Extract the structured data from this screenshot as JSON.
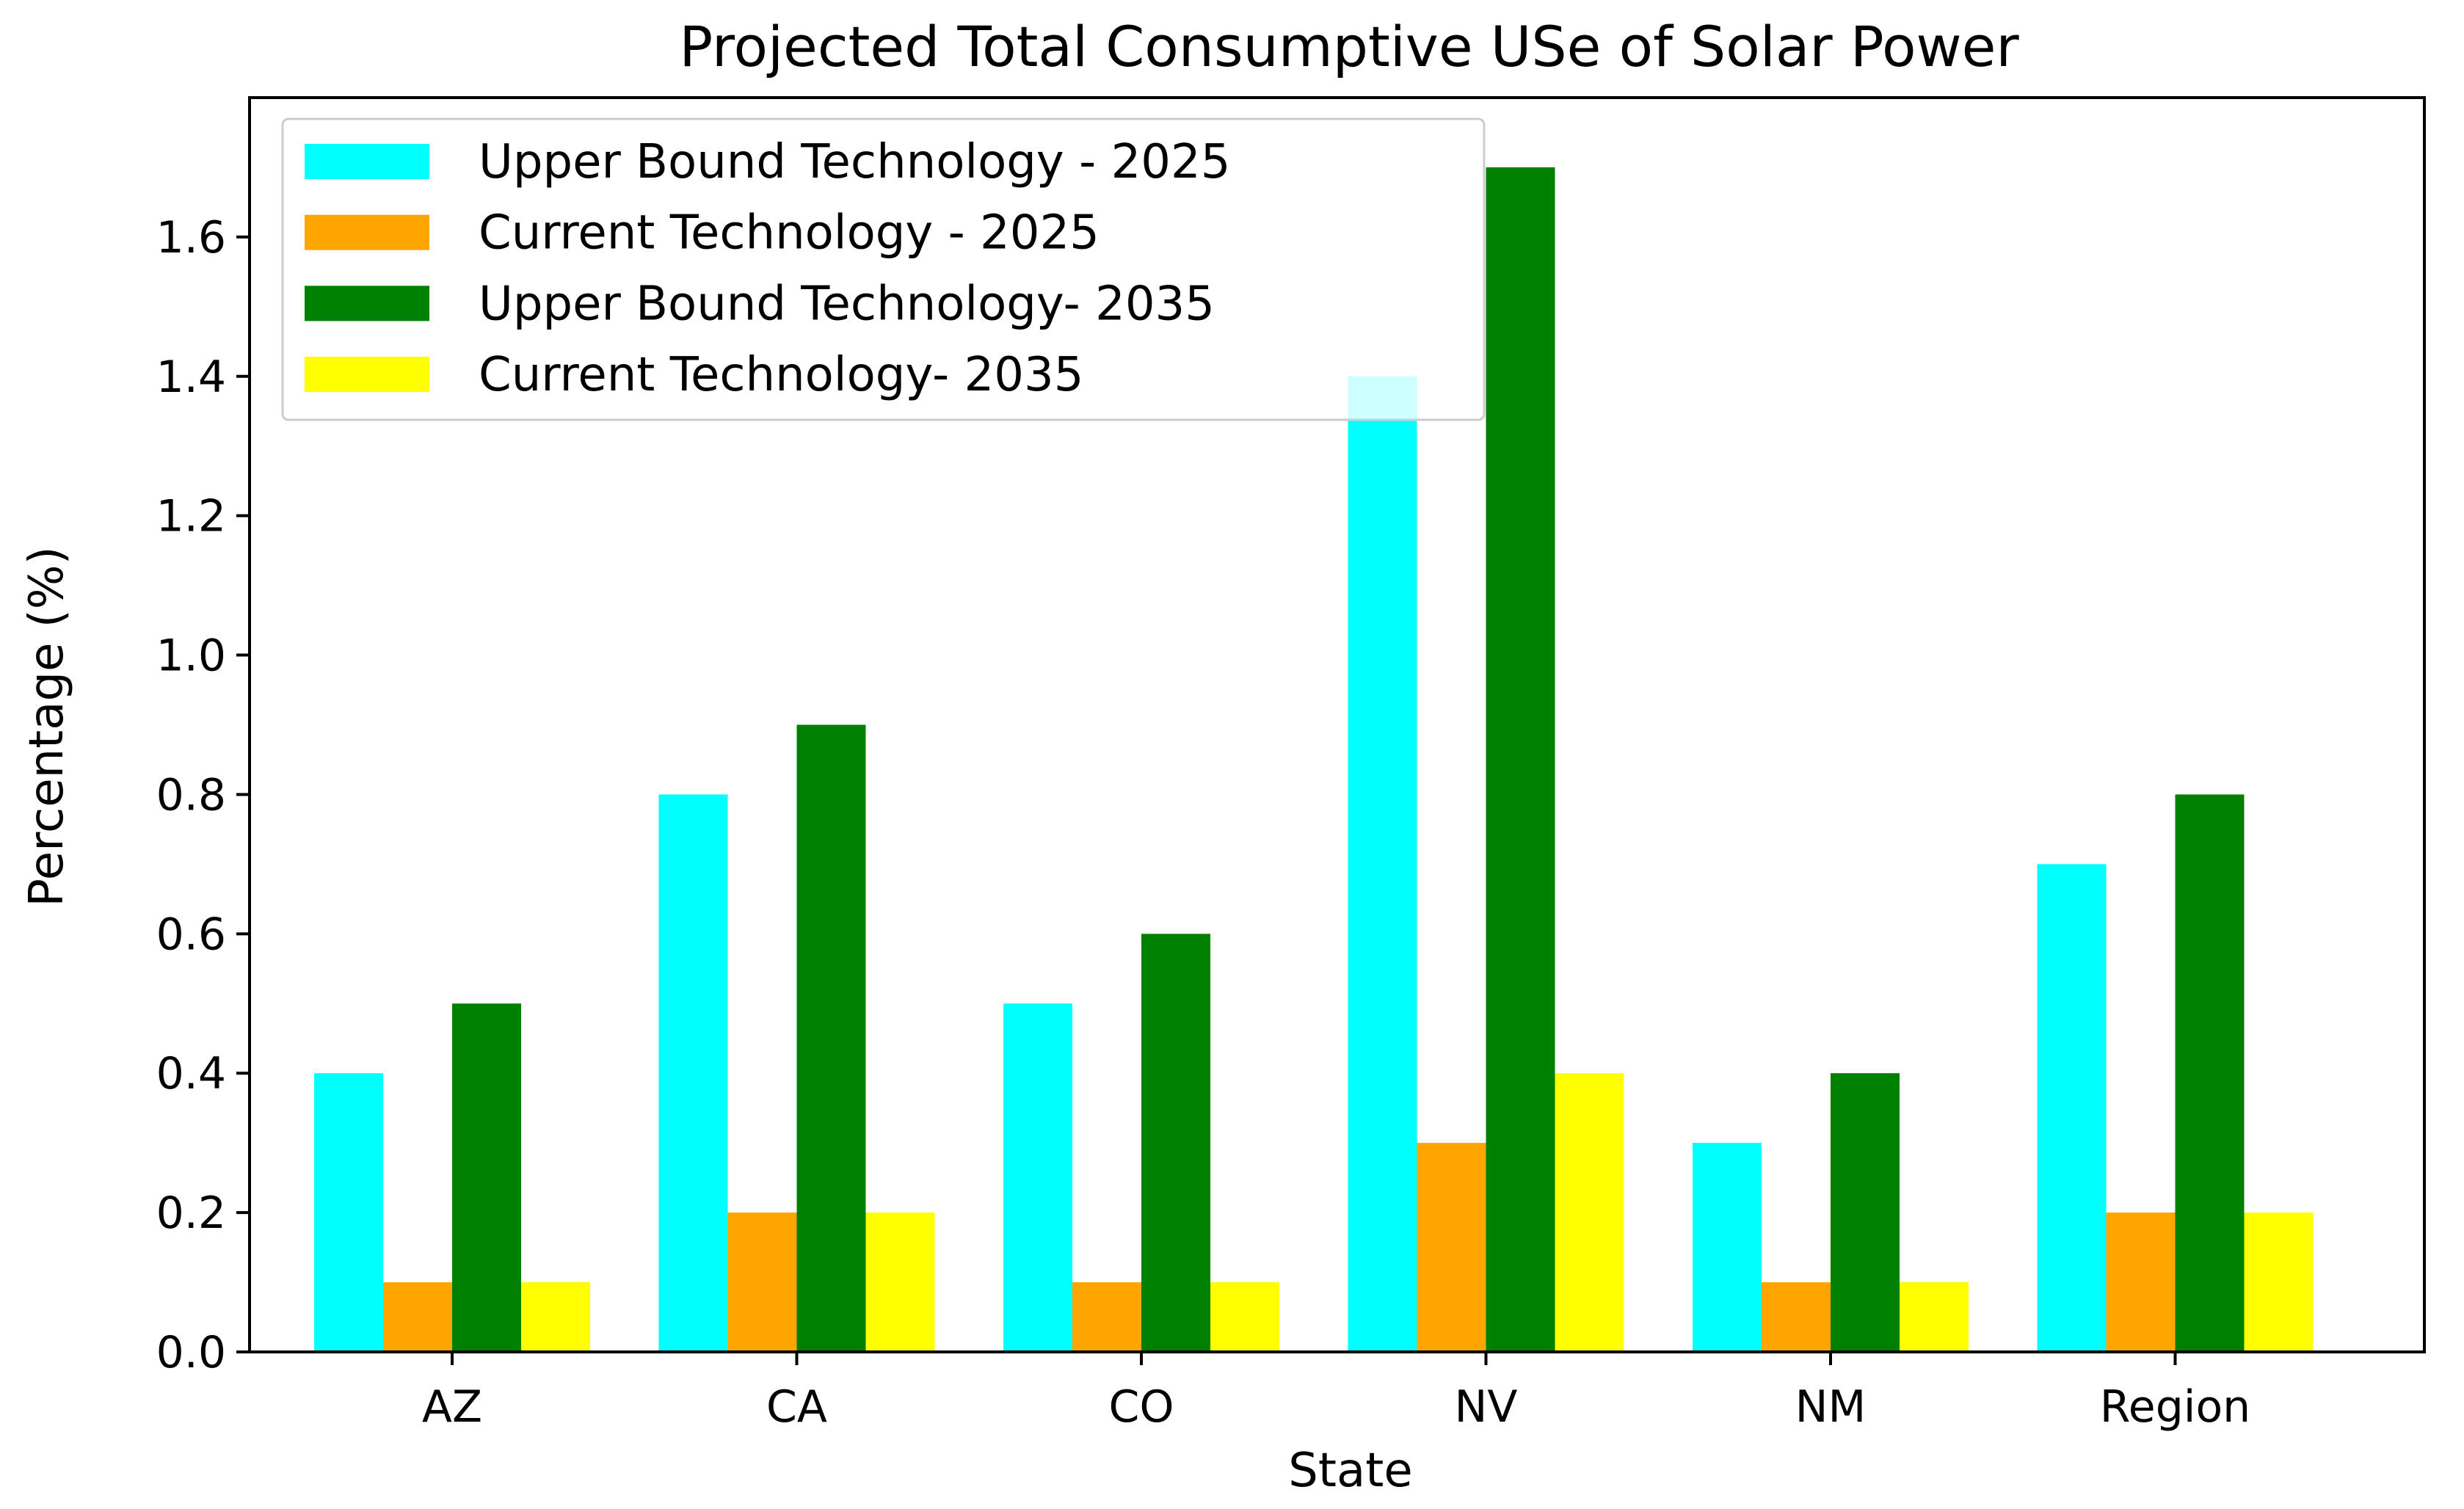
{
  "chart_data": {
    "type": "bar",
    "title": "Projected Total Consumptive USe of Solar Power",
    "xlabel": "State",
    "ylabel": "Percentage (%)",
    "categories": [
      "AZ",
      "CA",
      "CO",
      "NV",
      "NM",
      "Region"
    ],
    "ylim": [
      0,
      1.8
    ],
    "yticks": [
      0.0,
      0.2,
      0.4,
      0.6,
      0.8,
      1.0,
      1.2,
      1.4,
      1.6
    ],
    "ytick_labels": [
      "0.0",
      "0.2",
      "0.4",
      "0.6",
      "0.8",
      "1.0",
      "1.2",
      "1.4",
      "1.6"
    ],
    "grid": false,
    "legend_position": "top-left",
    "series": [
      {
        "name": "Upper Bound Technology - 2025",
        "color": "#00ffff",
        "values": [
          0.4,
          0.8,
          0.5,
          1.4,
          0.3,
          0.7
        ]
      },
      {
        "name": "Current Technology - 2025",
        "color": "#ffa500",
        "values": [
          0.1,
          0.2,
          0.1,
          0.3,
          0.1,
          0.2
        ]
      },
      {
        "name": "Upper Bound Technology- 2035",
        "color": "#008000",
        "values": [
          0.5,
          0.9,
          0.6,
          1.7,
          0.4,
          0.8
        ]
      },
      {
        "name": "Current Technology- 2035",
        "color": "#ffff00",
        "values": [
          0.1,
          0.2,
          0.1,
          0.4,
          0.1,
          0.2
        ]
      }
    ]
  }
}
